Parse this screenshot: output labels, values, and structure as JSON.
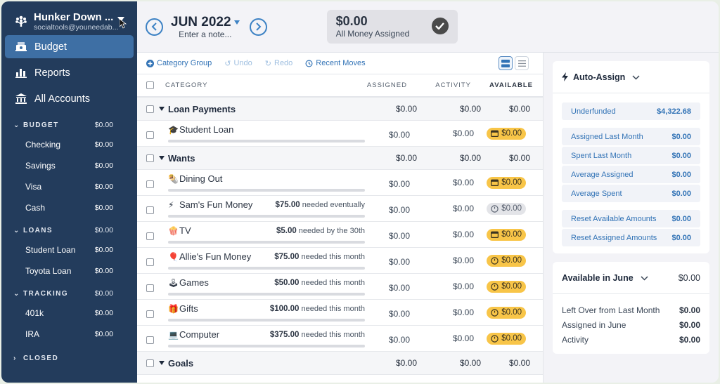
{
  "sidebar": {
    "budget_name": "Hunker Down ...",
    "email": "socialtools@youneedab...",
    "nav": [
      {
        "label": "Budget",
        "icon": "budget-icon",
        "active": true
      },
      {
        "label": "Reports",
        "icon": "reports-icon",
        "active": false
      },
      {
        "label": "All Accounts",
        "icon": "bank-icon",
        "active": false
      }
    ],
    "groups": [
      {
        "name": "BUDGET",
        "total": "$0.00",
        "expanded": true,
        "accounts": [
          {
            "name": "Checking",
            "balance": "$0.00"
          },
          {
            "name": "Savings",
            "balance": "$0.00"
          },
          {
            "name": "Visa",
            "balance": "$0.00"
          },
          {
            "name": "Cash",
            "balance": "$0.00"
          }
        ]
      },
      {
        "name": "LOANS",
        "total": "$0.00",
        "expanded": true,
        "accounts": [
          {
            "name": "Student Loan",
            "balance": "$0.00"
          },
          {
            "name": "Toyota Loan",
            "balance": "$0.00"
          }
        ]
      },
      {
        "name": "TRACKING",
        "total": "$0.00",
        "expanded": true,
        "accounts": [
          {
            "name": "401k",
            "balance": "$0.00"
          },
          {
            "name": "IRA",
            "balance": "$0.00"
          }
        ]
      },
      {
        "name": "CLOSED",
        "total": "",
        "expanded": false,
        "accounts": []
      }
    ]
  },
  "header": {
    "month": "JUN 2022",
    "note_placeholder": "Enter a note...",
    "ready_to_assign": {
      "amount": "$0.00",
      "label": "All Money Assigned"
    }
  },
  "toolbar": {
    "category_group": "Category Group",
    "undo": "Undo",
    "redo": "Redo",
    "recent_moves": "Recent Moves"
  },
  "table": {
    "columns": {
      "category": "CATEGORY",
      "assigned": "ASSIGNED",
      "activity": "ACTIVITY",
      "available": "AVAILABLE"
    },
    "rows": [
      {
        "type": "group",
        "name": "Loan Payments",
        "assigned": "$0.00",
        "activity": "$0.00",
        "available": "$0.00"
      },
      {
        "type": "cat",
        "emoji": "🎓",
        "name": "Student Loan",
        "goal_amount": "",
        "goal_text": "",
        "assigned": "$0.00",
        "activity": "$0.00",
        "available": "$0.00",
        "pill": "yellow",
        "pill_icon": "calendar"
      },
      {
        "type": "group",
        "name": "Wants",
        "assigned": "$0.00",
        "activity": "$0.00",
        "available": "$0.00"
      },
      {
        "type": "cat",
        "emoji": "🌯",
        "name": "Dining Out",
        "goal_amount": "",
        "goal_text": "",
        "assigned": "$0.00",
        "activity": "$0.00",
        "available": "$0.00",
        "pill": "yellow",
        "pill_icon": "calendar"
      },
      {
        "type": "cat",
        "emoji": "⚡",
        "name": "Sam's Fun Money",
        "goal_amount": "$75.00",
        "goal_text": "needed eventually",
        "assigned": "$0.00",
        "activity": "$0.00",
        "available": "$0.00",
        "pill": "grey",
        "pill_icon": "clock"
      },
      {
        "type": "cat",
        "emoji": "🍿",
        "name": "TV",
        "goal_amount": "$5.00",
        "goal_text": "needed by the 30th",
        "assigned": "$0.00",
        "activity": "$0.00",
        "available": "$0.00",
        "pill": "yellow",
        "pill_icon": "calendar"
      },
      {
        "type": "cat",
        "emoji": "🎈",
        "name": "Allie's Fun Money",
        "goal_amount": "$75.00",
        "goal_text": "needed this month",
        "assigned": "$0.00",
        "activity": "$0.00",
        "available": "$0.00",
        "pill": "yellow",
        "pill_icon": "clock"
      },
      {
        "type": "cat",
        "emoji": "🕹",
        "name": "Games",
        "goal_amount": "$50.00",
        "goal_text": "needed this month",
        "assigned": "$0.00",
        "activity": "$0.00",
        "available": "$0.00",
        "pill": "yellow",
        "pill_icon": "clock"
      },
      {
        "type": "cat",
        "emoji": "🎁",
        "name": "Gifts",
        "goal_amount": "$100.00",
        "goal_text": "needed this month",
        "assigned": "$0.00",
        "activity": "$0.00",
        "available": "$0.00",
        "pill": "yellow",
        "pill_icon": "clock"
      },
      {
        "type": "cat",
        "emoji": "💻",
        "name": "Computer",
        "goal_amount": "$375.00",
        "goal_text": "needed this month",
        "assigned": "$0.00",
        "activity": "$0.00",
        "available": "$0.00",
        "pill": "yellow",
        "pill_icon": "clock"
      },
      {
        "type": "group",
        "name": "Goals",
        "assigned": "$0.00",
        "activity": "$0.00",
        "available": "$0.00"
      }
    ]
  },
  "inspector": {
    "auto_assign": {
      "title": "Auto-Assign",
      "items": [
        {
          "label": "Underfunded",
          "value": "$4,322.68"
        },
        {
          "label": "Assigned Last Month",
          "value": "$0.00"
        },
        {
          "label": "Spent Last Month",
          "value": "$0.00"
        },
        {
          "label": "Average Assigned",
          "value": "$0.00"
        },
        {
          "label": "Average Spent",
          "value": "$0.00"
        },
        {
          "label": "Reset Available Amounts",
          "value": "$0.00"
        },
        {
          "label": "Reset Assigned Amounts",
          "value": "$0.00"
        }
      ]
    },
    "available": {
      "title": "Available in June",
      "total": "$0.00",
      "items": [
        {
          "label": "Left Over from Last Month",
          "value": "$0.00"
        },
        {
          "label": "Assigned in June",
          "value": "$0.00"
        },
        {
          "label": "Activity",
          "value": "$0.00"
        }
      ]
    }
  },
  "colors": {
    "sidebar_bg": "#233c5c",
    "active_nav": "#3e6fa4",
    "accent_blue": "#3273b6",
    "pill_yellow": "#f8c548",
    "pill_grey": "#e3e4e8"
  }
}
